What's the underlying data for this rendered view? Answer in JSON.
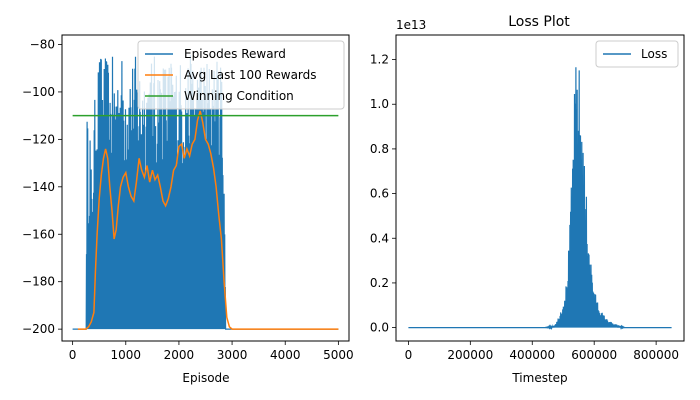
{
  "chart_data": [
    {
      "type": "line",
      "title": "",
      "xlabel": "Episode",
      "ylabel": "",
      "xlim": [
        -200,
        5200
      ],
      "ylim": [
        -205,
        -76
      ],
      "xticks": [
        "0",
        "1000",
        "2000",
        "3000",
        "4000",
        "5000"
      ],
      "xtick_values": [
        0,
        1000,
        2000,
        3000,
        4000,
        5000
      ],
      "yticks": [
        "−80",
        "−100",
        "−120",
        "−140",
        "−160",
        "−180",
        "−200"
      ],
      "ytick_values": [
        -80,
        -100,
        -120,
        -140,
        -160,
        -180,
        -200
      ],
      "legend_position": "top-right",
      "series": [
        {
          "name": "Episodes Reward",
          "color": "#1f77b4",
          "style": "dense-oscillation",
          "x": [
            0,
            250,
            270,
            300,
            330,
            360,
            400,
            450,
            480,
            520,
            560,
            600,
            650,
            700,
            750,
            800,
            900,
            1000,
            1100,
            1200,
            1300,
            1400,
            1500,
            1600,
            1700,
            1800,
            1900,
            2000,
            2100,
            2200,
            2300,
            2400,
            2500,
            2600,
            2700,
            2800,
            2850,
            2880,
            2920,
            5000
          ],
          "high": [
            -200,
            -200,
            -104,
            -125,
            -110,
            -140,
            -110,
            -88,
            -85,
            -82,
            -84,
            -86,
            -83,
            -90,
            -85,
            -86,
            -84,
            -84,
            -85,
            -84,
            -85,
            -86,
            -84,
            -84,
            -85,
            -84,
            -85,
            -86,
            -84,
            -84,
            -85,
            -84,
            -84,
            -85,
            -86,
            -84,
            -120,
            -200,
            -200,
            -200
          ],
          "low": [
            -200,
            -200,
            -200,
            -200,
            -200,
            -200,
            -200,
            -200,
            -200,
            -200,
            -200,
            -200,
            -200,
            -200,
            -200,
            -200,
            -200,
            -200,
            -200,
            -200,
            -200,
            -200,
            -200,
            -200,
            -200,
            -200,
            -200,
            -200,
            -200,
            -200,
            -200,
            -200,
            -200,
            -200,
            -200,
            -200,
            -200,
            -200,
            -200,
            -200
          ]
        },
        {
          "name": "Avg Last 100 Rewards",
          "color": "#ff7f0e",
          "x": [
            100,
            250,
            300,
            350,
            400,
            430,
            460,
            500,
            540,
            580,
            620,
            660,
            700,
            740,
            780,
            820,
            860,
            900,
            950,
            1000,
            1050,
            1100,
            1150,
            1200,
            1250,
            1300,
            1350,
            1400,
            1450,
            1500,
            1550,
            1600,
            1650,
            1700,
            1750,
            1800,
            1850,
            1900,
            1950,
            2000,
            2050,
            2100,
            2150,
            2200,
            2250,
            2300,
            2350,
            2400,
            2450,
            2500,
            2550,
            2600,
            2650,
            2700,
            2750,
            2800,
            2850,
            2900,
            2950,
            3000,
            5000
          ],
          "y": [
            -200,
            -200,
            -199,
            -197,
            -193,
            -175,
            -160,
            -145,
            -135,
            -128,
            -124,
            -128,
            -140,
            -150,
            -162,
            -158,
            -148,
            -140,
            -136,
            -134,
            -140,
            -144,
            -146,
            -138,
            -128,
            -133,
            -136,
            -131,
            -138,
            -133,
            -137,
            -135,
            -140,
            -146,
            -148,
            -145,
            -140,
            -133,
            -131,
            -123,
            -122,
            -128,
            -124,
            -127,
            -122,
            -120,
            -112,
            -108,
            -113,
            -120,
            -122,
            -126,
            -132,
            -140,
            -152,
            -162,
            -180,
            -195,
            -199,
            -200,
            -200
          ]
        },
        {
          "name": "Winning Condition",
          "color": "#2ca02c",
          "x": [
            0,
            5000
          ],
          "y": [
            -110,
            -110
          ]
        }
      ]
    },
    {
      "type": "line",
      "title": "Loss Plot",
      "xlabel": "Timestep",
      "ylabel": "",
      "offset_text": "1e13",
      "xlim": [
        -40000,
        890000
      ],
      "ylim": [
        -0.06,
        1.31
      ],
      "xticks": [
        "0",
        "200000",
        "400000",
        "600000",
        "800000"
      ],
      "xtick_values": [
        0,
        200000,
        400000,
        600000,
        800000
      ],
      "yticks": [
        "0.0",
        "0.2",
        "0.4",
        "0.6",
        "0.8",
        "1.0",
        "1.2"
      ],
      "ytick_values": [
        0.0,
        0.2,
        0.4,
        0.6,
        0.8,
        1.0,
        1.2
      ],
      "legend_position": "top-right",
      "series": [
        {
          "name": "Loss",
          "color": "#1f77b4",
          "style": "dense-spikes",
          "x": [
            0,
            440000,
            470000,
            480000,
            490000,
            500000,
            510000,
            520000,
            525000,
            530000,
            535000,
            540000,
            545000,
            550000,
            555000,
            560000,
            565000,
            570000,
            580000,
            590000,
            600000,
            620000,
            640000,
            660000,
            680000,
            700000,
            850000
          ],
          "y": [
            0,
            0,
            0.01,
            0.03,
            0.07,
            0.12,
            0.2,
            0.4,
            0.6,
            0.8,
            1.0,
            1.18,
            1.24,
            1.2,
            1.1,
            0.98,
            0.85,
            0.7,
            0.48,
            0.3,
            0.17,
            0.08,
            0.04,
            0.02,
            0.01,
            0.0,
            0.0
          ]
        }
      ]
    }
  ]
}
